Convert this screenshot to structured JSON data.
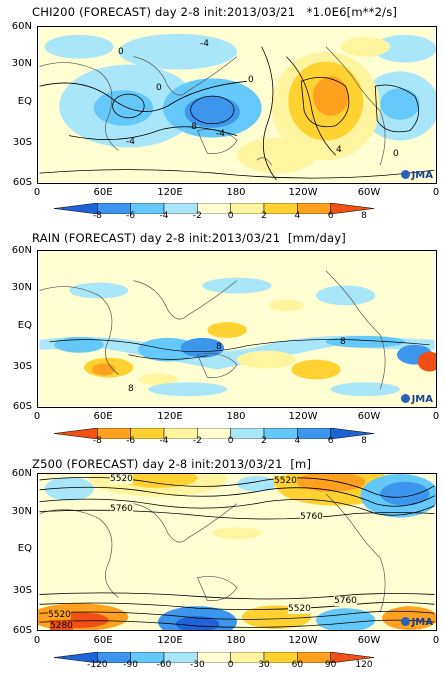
{
  "panels": [
    {
      "title": "CHI200 (FORECAST) day 2-8 init:2013/03/21   *1.0E6[m**2/s]",
      "lat_labels": [
        "60N",
        "30N",
        "EQ",
        "30S",
        "60S"
      ],
      "lon_labels": [
        "0",
        "60E",
        "120E",
        "180",
        "120W",
        "60W",
        "0"
      ],
      "logo": "JMA",
      "colorbar_ticks": [
        "-8",
        "-6",
        "-4",
        "-2",
        "0",
        "2",
        "4",
        "6",
        "8"
      ],
      "colorbar_colors": [
        "#1e64d8",
        "#3c96ee",
        "#64c8f8",
        "#aae6fa",
        "#ffffd2",
        "#fff5a0",
        "#ffd232",
        "#ffa01e",
        "#f05014"
      ],
      "contour_labels": [
        "0",
        "-4",
        "-8",
        "-4",
        "0",
        "4",
        "0",
        "-4",
        "0"
      ]
    },
    {
      "title": "RAIN (FORECAST) day 2-8 init:2013/03/21  [mm/day]",
      "lat_labels": [
        "60N",
        "30N",
        "EQ",
        "30S",
        "60S"
      ],
      "lon_labels": [
        "0",
        "60E",
        "120E",
        "180",
        "120W",
        "60W",
        "0"
      ],
      "logo": "JMA",
      "colorbar_ticks": [
        "-8",
        "-6",
        "-4",
        "-2",
        "0",
        "2",
        "4",
        "6",
        "8"
      ],
      "colorbar_colors": [
        "#f05014",
        "#ffa01e",
        "#ffd232",
        "#fff5a0",
        "#ffffd2",
        "#aae6fa",
        "#64c8f8",
        "#3c96ee",
        "#1e64d8"
      ],
      "contour_labels": [
        "8",
        "8",
        "8"
      ]
    },
    {
      "title": "Z500 (FORECAST) day 2-8 init:2013/03/21  [m]",
      "lat_labels": [
        "60N",
        "30N",
        "EQ",
        "30S",
        "60S"
      ],
      "lon_labels": [
        "0",
        "60E",
        "120E",
        "180",
        "120W",
        "60W",
        "0"
      ],
      "logo": "JMA",
      "colorbar_ticks": [
        "-120",
        "-90",
        "-60",
        "-30",
        "0",
        "30",
        "60",
        "90",
        "120"
      ],
      "colorbar_colors": [
        "#1e64d8",
        "#3c96ee",
        "#64c8f8",
        "#aae6fa",
        "#ffffd2",
        "#fff5a0",
        "#ffd232",
        "#ffa01e",
        "#f05014"
      ],
      "contour_labels": [
        "5520",
        "5520",
        "5760",
        "5760",
        "5520",
        "5520",
        "5760",
        "5280"
      ]
    }
  ],
  "chart_data": [
    {
      "type": "heatmap",
      "title": "CHI200 (FORECAST) day 2-8 init:2013/03/21",
      "units": "*1.0E6[m**2/s]",
      "x_range": [
        0,
        360
      ],
      "y_range": [
        -60,
        60
      ],
      "color_levels": [
        -8,
        -6,
        -4,
        -2,
        0,
        2,
        4,
        6,
        8
      ],
      "contour_labels": [
        "0",
        "-4",
        "-8",
        "-4",
        "0",
        "4",
        "0",
        "-4",
        "0"
      ],
      "colors": {
        "negative": "#3c96ee",
        "positive": "#ffa01e"
      }
    },
    {
      "type": "heatmap",
      "title": "RAIN (FORECAST) day 2-8 init:2013/03/21",
      "units": "[mm/day]",
      "x_range": [
        0,
        360
      ],
      "y_range": [
        -60,
        60
      ],
      "color_levels": [
        -8,
        -6,
        -4,
        -2,
        0,
        2,
        4,
        6,
        8
      ],
      "contour_labels": [
        "8",
        "8",
        "8"
      ],
      "colors": {
        "negative": "#ffa01e",
        "positive": "#3c96ee"
      }
    },
    {
      "type": "heatmap",
      "title": "Z500 (FORECAST) day 2-8 init:2013/03/21",
      "units": "[m]",
      "x_range": [
        0,
        360
      ],
      "y_range": [
        -60,
        60
      ],
      "color_levels": [
        -120,
        -90,
        -60,
        -30,
        0,
        30,
        60,
        90,
        120
      ],
      "contour_labels": [
        "5520",
        "5520",
        "5760",
        "5760",
        "5520",
        "5520",
        "5760",
        "5280"
      ],
      "colors": {
        "negative": "#3c96ee",
        "positive": "#ffa01e"
      }
    }
  ]
}
